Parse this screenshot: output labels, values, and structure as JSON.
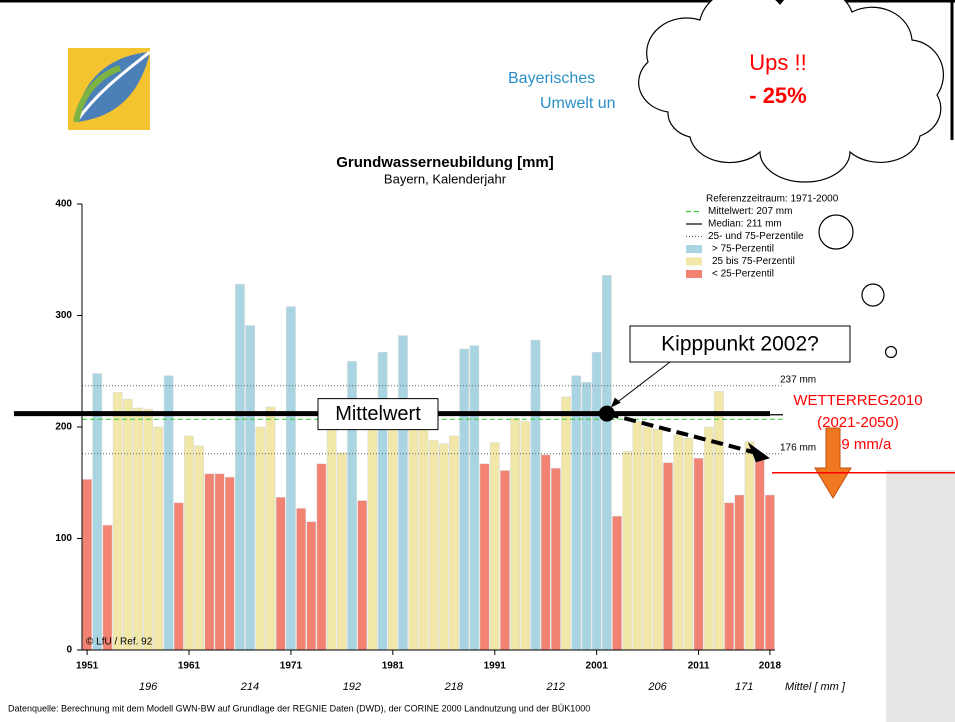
{
  "slide": {
    "header_lines": [
      "Bayerisches",
      "Umwelt un"
    ],
    "cloud_lines": [
      "Ups !!",
      "- 25%"
    ],
    "source": "Datenquelle: Berechnung mit dem Modell GWN-BW auf Grundlage der REGNIE Daten (DWD), der CORINE 2000 Landnutzung und der BÜK1000"
  },
  "chart_data": {
    "type": "bar",
    "title": "Grundwasserneubildung [mm]",
    "subtitle": "Bayern, Kalenderjahr",
    "x": [
      1951,
      1952,
      1953,
      1954,
      1955,
      1956,
      1957,
      1958,
      1959,
      1960,
      1961,
      1962,
      1963,
      1964,
      1965,
      1966,
      1967,
      1968,
      1969,
      1970,
      1971,
      1972,
      1973,
      1974,
      1975,
      1976,
      1977,
      1978,
      1979,
      1980,
      1981,
      1982,
      1983,
      1984,
      1985,
      1986,
      1987,
      1988,
      1989,
      1990,
      1991,
      1992,
      1993,
      1994,
      1995,
      1996,
      1997,
      1998,
      1999,
      2000,
      2001,
      2002,
      2003,
      2004,
      2005,
      2006,
      2007,
      2008,
      2009,
      2010,
      2011,
      2012,
      2013,
      2014,
      2015,
      2016,
      2017,
      2018
    ],
    "xlim": [
      1950.5,
      2018.5
    ],
    "xticks": [
      1951,
      1961,
      1971,
      1981,
      1991,
      2001,
      2011,
      2018
    ],
    "ylim": [
      0,
      400
    ],
    "yticks": [
      0,
      100,
      200,
      300,
      400
    ],
    "legend_title": "Referenzzeitraum: 1971-2000",
    "series": [
      {
        "name": "> 75-Perzentil",
        "color": "#a9d5e2",
        "values": [
          null,
          248,
          null,
          null,
          null,
          null,
          null,
          null,
          246,
          null,
          null,
          null,
          null,
          null,
          null,
          328,
          291,
          null,
          null,
          null,
          308,
          null,
          null,
          null,
          null,
          null,
          259,
          null,
          null,
          267,
          null,
          282,
          null,
          null,
          null,
          null,
          null,
          270,
          273,
          null,
          null,
          null,
          null,
          null,
          278,
          null,
          null,
          null,
          246,
          240,
          267,
          336,
          null,
          null,
          null,
          null,
          null,
          null,
          null,
          null,
          null,
          null,
          null,
          null,
          null,
          null,
          null,
          null
        ]
      },
      {
        "name": "25 bis 75-Perzentil",
        "color": "#f1e7a8",
        "values": [
          null,
          null,
          null,
          231,
          225,
          217,
          216,
          200,
          null,
          null,
          192,
          183,
          null,
          null,
          null,
          null,
          null,
          200,
          218,
          null,
          null,
          null,
          null,
          null,
          205,
          177,
          null,
          null,
          200,
          null,
          205,
          null,
          200,
          205,
          188,
          185,
          192,
          null,
          null,
          null,
          186,
          null,
          208,
          205,
          null,
          null,
          null,
          227,
          null,
          null,
          null,
          null,
          null,
          178,
          205,
          200,
          198,
          null,
          193,
          190,
          null,
          200,
          232,
          null,
          null,
          187,
          null,
          null
        ]
      },
      {
        "name": "< 25-Perzentil",
        "color": "#f28272",
        "values": [
          153,
          null,
          112,
          null,
          null,
          null,
          null,
          null,
          null,
          132,
          null,
          null,
          158,
          158,
          155,
          null,
          null,
          null,
          null,
          137,
          null,
          127,
          115,
          167,
          null,
          null,
          null,
          134,
          null,
          null,
          null,
          null,
          null,
          null,
          null,
          null,
          null,
          null,
          null,
          167,
          null,
          161,
          null,
          null,
          null,
          175,
          163,
          null,
          null,
          null,
          null,
          null,
          120,
          null,
          null,
          null,
          null,
          168,
          null,
          null,
          172,
          null,
          null,
          132,
          139,
          null,
          175,
          139
        ]
      }
    ],
    "reference_lines": [
      {
        "name": "Mittelwert: 207 mm",
        "value": 207,
        "color": "#33cc33",
        "dash": "5 3"
      },
      {
        "name": "Median:  211 mm",
        "value": 211,
        "color": "#000000",
        "dash": "none"
      },
      {
        "name": "25- und 75-Perzentile",
        "values": [
          176,
          237
        ],
        "value_labels": [
          "176 mm",
          "237 mm"
        ],
        "color": "#666666",
        "dash": "1 2"
      }
    ],
    "decade_means": {
      "label": "Mittel [ mm ]",
      "values": [
        196,
        214,
        192,
        218,
        212,
        206,
        171
      ]
    },
    "copyright": "© LfU / Ref. 92",
    "annotations": {
      "mean_line": {
        "label": "Mittelwert",
        "value": 212
      },
      "tipping_point": {
        "label": "Kipppunkt 2002?",
        "x": 2002,
        "y": 212
      },
      "trend_end": {
        "x": 2018,
        "y": 172
      },
      "projection": {
        "lines": [
          "WETTERREG2010",
          "(2021-2050)",
          "159 mm/a"
        ],
        "value": 159,
        "color": "#ff0000"
      }
    }
  }
}
